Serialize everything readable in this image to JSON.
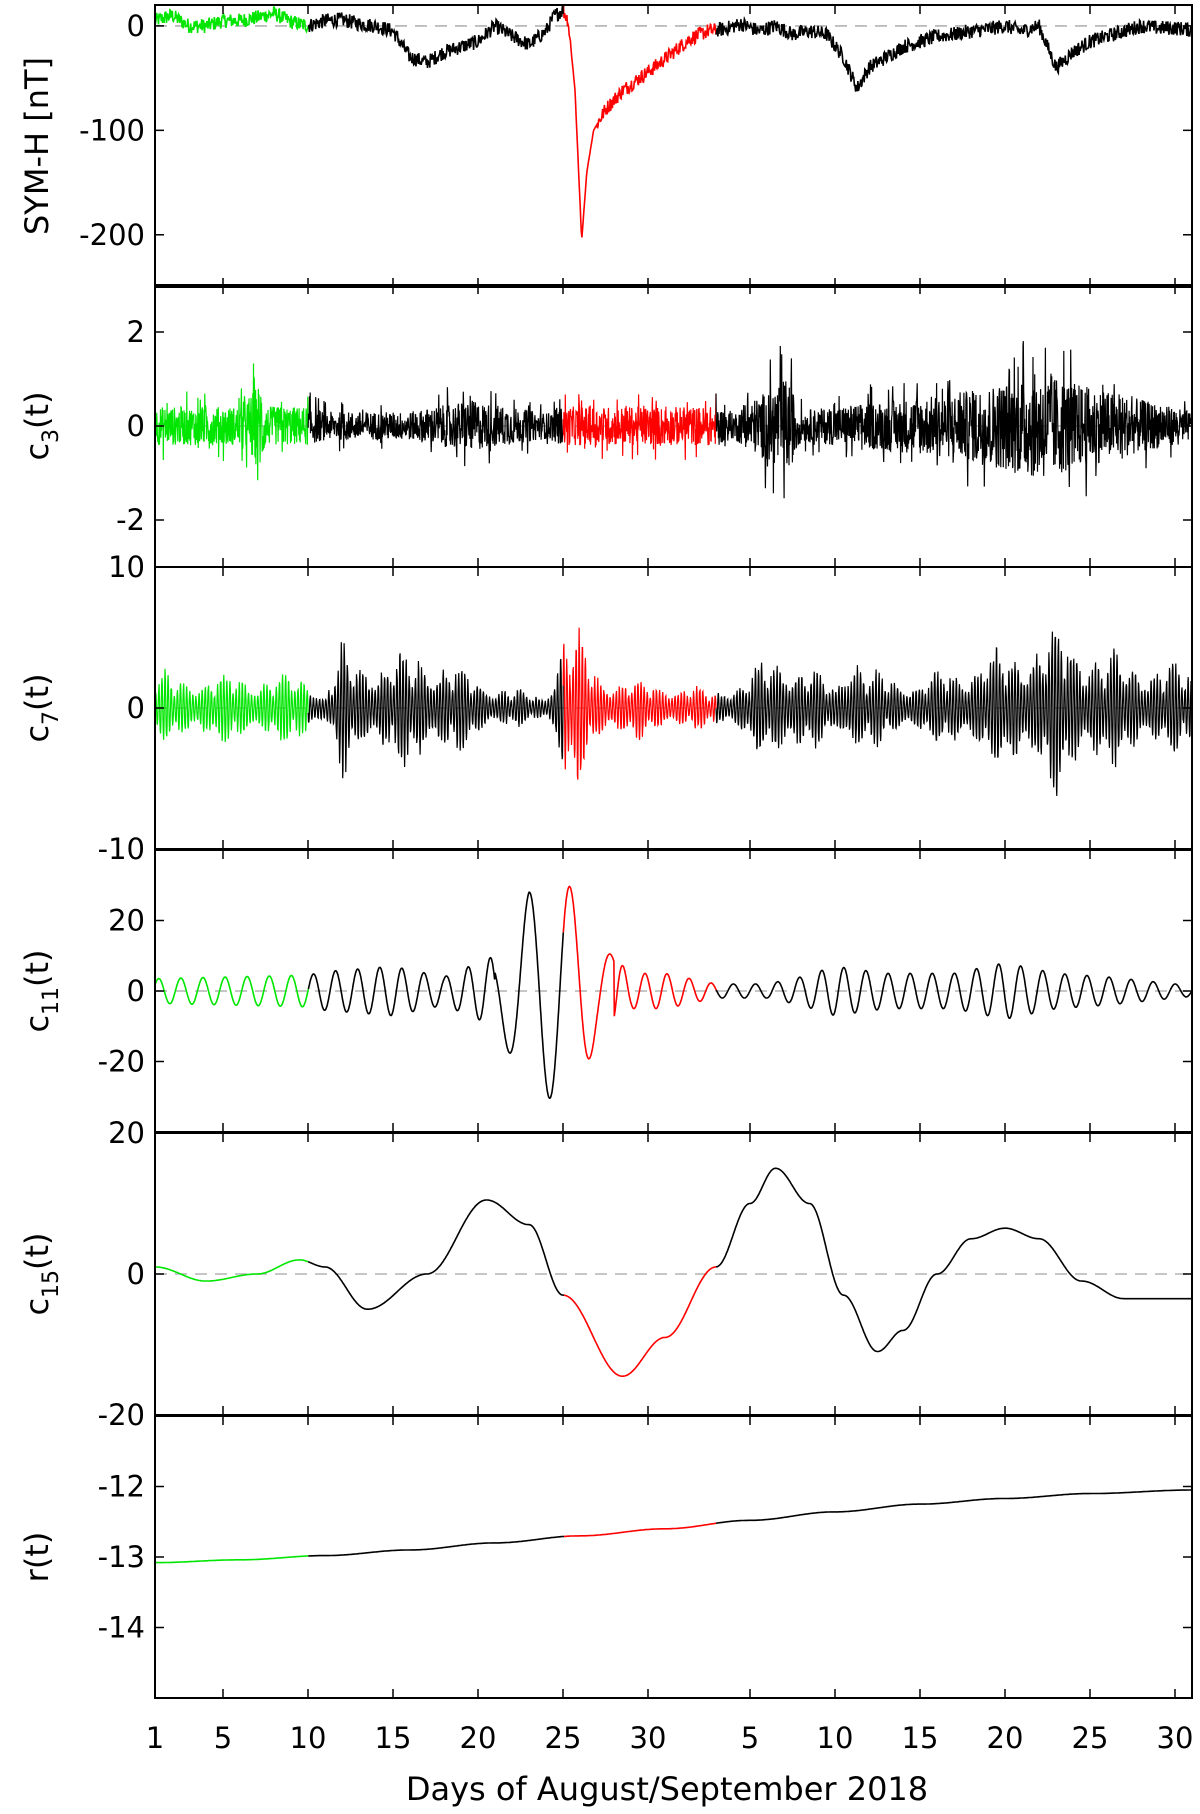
{
  "figure": {
    "xlabel": "Days of August/September 2018",
    "x_tick_labels": [
      "1",
      "5",
      "10",
      "15",
      "20",
      "25",
      "30",
      "5",
      "10",
      "15",
      "20",
      "25",
      "30"
    ]
  },
  "colors": {
    "quiet_period": "#00e600",
    "storm_period": "#ff0000",
    "other": "#000000",
    "zero_line": "#b3b3b3"
  },
  "chart_data": [
    {
      "type": "line",
      "ylabel": "SYM-H [nT]",
      "ylim": [
        -250,
        20
      ],
      "yticks": [
        0,
        -100,
        -200
      ],
      "segments": {
        "quiet": [
          "Aug 1",
          "Aug 10"
        ],
        "storm": [
          "Aug 25",
          "Sep 3"
        ]
      },
      "series": [
        {
          "x_unit": "days since Aug 1 00:00",
          "points": [
            [
              0,
              5
            ],
            [
              1,
              10
            ],
            [
              2,
              0
            ],
            [
              3,
              0
            ],
            [
              4,
              5
            ],
            [
              5,
              5
            ],
            [
              6,
              8
            ],
            [
              7,
              12
            ],
            [
              8,
              4
            ],
            [
              9,
              0
            ],
            [
              10,
              5
            ],
            [
              11,
              6
            ],
            [
              12,
              2
            ],
            [
              13,
              0
            ],
            [
              14,
              -5
            ],
            [
              15,
              -30
            ],
            [
              16,
              -35
            ],
            [
              17,
              -25
            ],
            [
              18,
              -20
            ],
            [
              19,
              -15
            ],
            [
              20,
              0
            ],
            [
              21,
              -10
            ],
            [
              22,
              -18
            ],
            [
              23,
              -5
            ],
            [
              23.5,
              10
            ],
            [
              24,
              15
            ],
            [
              24.3,
              5
            ],
            [
              24.7,
              -60
            ],
            [
              25.1,
              -205
            ],
            [
              25.4,
              -140
            ],
            [
              25.8,
              -100
            ],
            [
              26.5,
              -80
            ],
            [
              27.5,
              -62
            ],
            [
              28.5,
              -50
            ],
            [
              29.5,
              -38
            ],
            [
              30.5,
              -25
            ],
            [
              31.5,
              -12
            ],
            [
              32.5,
              -5
            ],
            [
              33.5,
              -3
            ],
            [
              34.5,
              2
            ],
            [
              35.5,
              -5
            ],
            [
              36.5,
              0
            ],
            [
              37.5,
              -8
            ],
            [
              38.5,
              -5
            ],
            [
              39.5,
              -8
            ],
            [
              40.5,
              -30
            ],
            [
              41.3,
              -60
            ],
            [
              42,
              -40
            ],
            [
              43,
              -30
            ],
            [
              44,
              -20
            ],
            [
              45,
              -15
            ],
            [
              46,
              -10
            ],
            [
              47,
              -8
            ],
            [
              48,
              -5
            ],
            [
              49,
              -3
            ],
            [
              50,
              0
            ],
            [
              51,
              -5
            ],
            [
              52,
              0
            ],
            [
              53,
              -40
            ],
            [
              54,
              -25
            ],
            [
              55,
              -15
            ],
            [
              56,
              -10
            ],
            [
              57,
              -5
            ],
            [
              58,
              0
            ],
            [
              59,
              -2
            ],
            [
              60,
              -2
            ],
            [
              61,
              -4
            ]
          ]
        }
      ]
    },
    {
      "type": "line",
      "ylabel": "c3(t)",
      "ylim": [
        -3,
        3
      ],
      "yticks": [
        2,
        0,
        -2
      ],
      "segments": {
        "quiet": [
          "Aug 1",
          "Aug 10"
        ],
        "storm": [
          "Aug 25",
          "Sep 3"
        ]
      },
      "series": [
        {
          "description": "high-frequency intrinsic mode, amplitude envelope (days since Aug 1, amplitude)",
          "envelope": [
            [
              0,
              0.75
            ],
            [
              5,
              0.75
            ],
            [
              6.3,
              1.8
            ],
            [
              6.5,
              0.75
            ],
            [
              9,
              0.75
            ],
            [
              10,
              0.55
            ],
            [
              15,
              0.55
            ],
            [
              18.5,
              1.0
            ],
            [
              23,
              0.5
            ],
            [
              24,
              0.75
            ],
            [
              33,
              0.75
            ],
            [
              34,
              0.5
            ],
            [
              37.2,
              1.9
            ],
            [
              38,
              0.6
            ],
            [
              47.5,
              1.3
            ],
            [
              52.2,
              2.1
            ],
            [
              55,
              1.5
            ],
            [
              61,
              0.55
            ]
          ]
        }
      ]
    },
    {
      "type": "line",
      "ylabel": "c7(t)",
      "ylim": [
        -10,
        10
      ],
      "yticks": [
        10,
        0,
        -10
      ],
      "segments": {
        "quiet": [
          "Aug 1",
          "Aug 10"
        ],
        "storm": [
          "Aug 25",
          "Sep 3"
        ]
      },
      "series": [
        {
          "description": "mode amplitude envelope (days since Aug 1, amplitude)",
          "envelope": [
            [
              0,
              2.8
            ],
            [
              9,
              2.8
            ],
            [
              10,
              1.0
            ],
            [
              11,
              5.5
            ],
            [
              12,
              4.0
            ],
            [
              16,
              4.8
            ],
            [
              20,
              2.0
            ],
            [
              23,
              1.0
            ],
            [
              24,
              7.0
            ],
            [
              25,
              6.0
            ],
            [
              26,
              3.0
            ],
            [
              33,
              1.5
            ],
            [
              35,
              3.0
            ],
            [
              37,
              5.0
            ],
            [
              40,
              2.0
            ],
            [
              41,
              5.5
            ],
            [
              42,
              3.0
            ],
            [
              45,
              2.5
            ],
            [
              52,
              6.0
            ],
            [
              53,
              7.0
            ],
            [
              56,
              4.5
            ],
            [
              61,
              3.5
            ]
          ]
        }
      ]
    },
    {
      "type": "line",
      "ylabel": "c11(t)",
      "ylim": [
        -40,
        40
      ],
      "yticks": [
        20,
        0,
        -20
      ],
      "segments": {
        "quiet": [
          "Aug 1",
          "Aug 10"
        ],
        "storm": [
          "Aug 25",
          "Sep 3"
        ]
      },
      "series": [
        {
          "description": "oscillation envelope (days since Aug 1, amplitude); peak +32 on Aug 25, trough -31 on Aug 24",
          "envelope": [
            [
              0,
              3.5
            ],
            [
              9,
              4.5
            ],
            [
              10,
              5.5
            ],
            [
              14,
              7
            ],
            [
              17,
              4
            ],
            [
              20,
              10
            ],
            [
              22,
              28
            ],
            [
              24,
              32
            ],
            [
              25,
              26
            ],
            [
              26,
              14
            ],
            [
              28,
              5
            ],
            [
              30,
              5
            ],
            [
              33,
              2
            ],
            [
              36,
              2
            ],
            [
              38,
              4
            ],
            [
              40,
              7
            ],
            [
              43,
              5
            ],
            [
              47,
              5
            ],
            [
              50,
              8
            ],
            [
              53,
              5
            ],
            [
              56,
              4
            ],
            [
              58,
              3
            ],
            [
              61,
              1.5
            ]
          ]
        }
      ]
    },
    {
      "type": "line",
      "ylabel": "c15(t)",
      "ylim": [
        -20,
        20
      ],
      "yticks": [
        20,
        0,
        -20
      ],
      "segments": {
        "quiet": [
          "Aug 1",
          "Aug 10"
        ],
        "storm": [
          "Aug 25",
          "Sep 3"
        ]
      },
      "series": [
        {
          "points": [
            [
              0,
              1
            ],
            [
              3,
              -1
            ],
            [
              6,
              0
            ],
            [
              8.5,
              2
            ],
            [
              10,
              1
            ],
            [
              12.5,
              -5
            ],
            [
              16,
              0
            ],
            [
              19.5,
              10.5
            ],
            [
              22,
              7
            ],
            [
              24,
              -3
            ],
            [
              27.5,
              -14.5
            ],
            [
              30,
              -9
            ],
            [
              33,
              1
            ],
            [
              35,
              10
            ],
            [
              36.5,
              15
            ],
            [
              38.5,
              10
            ],
            [
              40.5,
              -3
            ],
            [
              42.5,
              -11
            ],
            [
              44,
              -8
            ],
            [
              46,
              0
            ],
            [
              48,
              5
            ],
            [
              50,
              6.5
            ],
            [
              52,
              5
            ],
            [
              54.5,
              -1
            ],
            [
              57,
              -3.5
            ],
            [
              61,
              -3.5
            ]
          ]
        }
      ]
    },
    {
      "type": "line",
      "ylabel": "r(t)",
      "ylim": [
        -15,
        -11
      ],
      "yticks": [
        -12,
        -13,
        -14
      ],
      "segments": {
        "quiet": [
          "Aug 1",
          "Aug 10"
        ],
        "storm": [
          "Aug 25",
          "Sep 3"
        ]
      },
      "series": [
        {
          "points": [
            [
              0,
              -13.08
            ],
            [
              5,
              -13.04
            ],
            [
              10,
              -12.98
            ],
            [
              15,
              -12.9
            ],
            [
              20,
              -12.8
            ],
            [
              25,
              -12.7
            ],
            [
              30,
              -12.6
            ],
            [
              35,
              -12.48
            ],
            [
              40,
              -12.36
            ],
            [
              45,
              -12.25
            ],
            [
              50,
              -12.17
            ],
            [
              55,
              -12.1
            ],
            [
              61,
              -12.05
            ]
          ]
        }
      ]
    }
  ]
}
